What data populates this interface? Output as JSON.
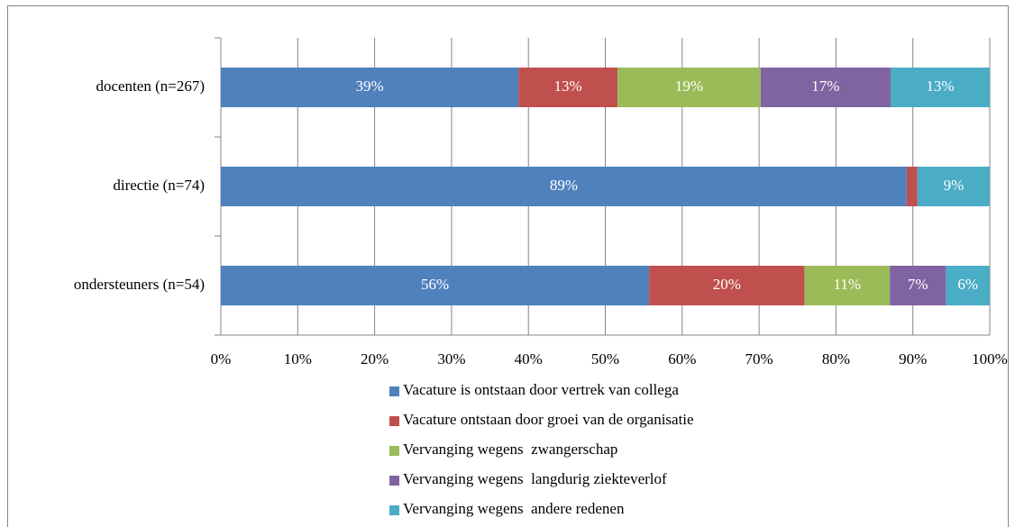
{
  "chart_data": {
    "type": "stacked-bar-horizontal",
    "categories": [
      "docenten (n=267)",
      "directie (n=74)",
      "ondersteuners (n=54)"
    ],
    "series": [
      {
        "name": "Vacature is ontstaan door vertrek van collega",
        "color": "#4f81bd",
        "values": [
          38.7,
          89.2,
          55.7
        ],
        "value_labels": [
          "39%",
          "89%",
          "56%"
        ]
      },
      {
        "name": "Vacature ontstaan door groei van de organisatie",
        "color": "#c0504d",
        "values": [
          12.9,
          1.4,
          20.2
        ],
        "value_labels": [
          "13%",
          null,
          "20%"
        ]
      },
      {
        "name": "Vervanging wegens  zwangerschap",
        "color": "#9bbb59",
        "values": [
          18.6,
          0,
          11.1
        ],
        "value_labels": [
          "19%",
          null,
          "11%"
        ]
      },
      {
        "name": "Vervanging wegens  langdurig ziekteverlof",
        "color": "#8064a2",
        "values": [
          16.9,
          0,
          7.3
        ],
        "value_labels": [
          "17%",
          null,
          "7%"
        ]
      },
      {
        "name": "Vervanging wegens  andere redenen",
        "color": "#4bacc6",
        "values": [
          12.9,
          9.4,
          5.7
        ],
        "value_labels": [
          "13%",
          "9%",
          "6%"
        ]
      }
    ],
    "xlim": [
      0,
      100
    ],
    "xticks": [
      {
        "value": 0,
        "label": "0%"
      },
      {
        "value": 10,
        "label": "10%"
      },
      {
        "value": 20,
        "label": "20%"
      },
      {
        "value": 30,
        "label": "30%"
      },
      {
        "value": 40,
        "label": "40%"
      },
      {
        "value": 50,
        "label": "50%"
      },
      {
        "value": 60,
        "label": "60%"
      },
      {
        "value": 70,
        "label": "70%"
      },
      {
        "value": 80,
        "label": "80%"
      },
      {
        "value": 90,
        "label": "90%"
      },
      {
        "value": 100,
        "label": "100%"
      }
    ],
    "grid": true,
    "legend": "bottom"
  }
}
